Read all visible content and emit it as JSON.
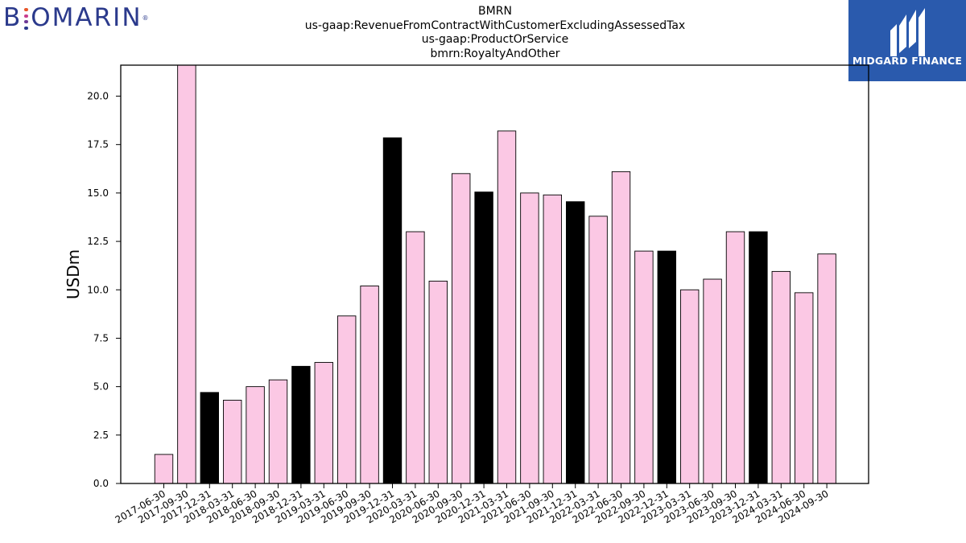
{
  "header": {
    "left_logo_text": "BIOMARIN",
    "left_logo_mark": "®",
    "title_lines": [
      "BMRN",
      "us-gaap:RevenueFromContractWithCustomerExcludingAssessedTax",
      "us-gaap:ProductOrService",
      "bmrn:RoyaltyAndOther"
    ],
    "right_logo_text": "MIDGARD FINANCE",
    "right_logo_icon": "midgard-m-icon"
  },
  "colors": {
    "bar_default": "#fbc8e4",
    "bar_highlight": "#000000",
    "logo_blue": "#2a5aad",
    "logo_text": "#2b3a8c"
  },
  "chart_data": {
    "type": "bar",
    "ylabel": "USDm",
    "xlabel": "",
    "ylim": [
      0,
      21.6
    ],
    "yticks": [
      0.0,
      2.5,
      5.0,
      7.5,
      10.0,
      12.5,
      15.0,
      17.5,
      20.0
    ],
    "categories": [
      "2017-06-30",
      "2017-09-30",
      "2017-12-31",
      "2018-03-31",
      "2018-06-30",
      "2018-09-30",
      "2018-12-31",
      "2019-03-31",
      "2019-06-30",
      "2019-09-30",
      "2019-12-31",
      "2020-03-31",
      "2020-06-30",
      "2020-09-30",
      "2020-12-31",
      "2021-03-31",
      "2021-06-30",
      "2021-09-30",
      "2021-12-31",
      "2022-03-31",
      "2022-06-30",
      "2022-09-30",
      "2022-12-31",
      "2023-03-31",
      "2023-06-30",
      "2023-09-30",
      "2023-12-31",
      "2024-03-31",
      "2024-06-30",
      "2024-09-30"
    ],
    "values": [
      1.5,
      21.6,
      4.7,
      4.3,
      5.0,
      5.35,
      6.05,
      6.25,
      8.65,
      10.2,
      17.85,
      13.0,
      10.45,
      16.0,
      15.05,
      18.2,
      15.0,
      14.9,
      14.55,
      13.8,
      16.1,
      12.0,
      12.0,
      10.0,
      10.55,
      13.0,
      13.0,
      10.95,
      9.85,
      11.85
    ],
    "highlight": [
      "2017-12-31",
      "2018-12-31",
      "2019-12-31",
      "2020-12-31",
      "2021-12-31",
      "2022-12-31",
      "2023-12-31"
    ],
    "grid": false,
    "legend": "none"
  }
}
